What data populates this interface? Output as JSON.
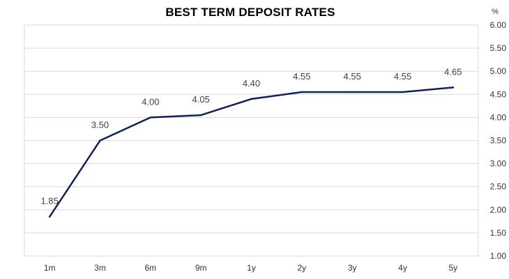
{
  "chart_data": {
    "type": "line",
    "title": "BEST TERM DEPOSIT RATES",
    "y_unit": "%",
    "categories": [
      "1m",
      "3m",
      "6m",
      "9m",
      "1y",
      "2y",
      "3y",
      "4y",
      "5y"
    ],
    "values": [
      1.85,
      3.5,
      4.0,
      4.05,
      4.4,
      4.55,
      4.55,
      4.55,
      4.65
    ],
    "data_labels": [
      "1.85",
      "3.50",
      "4.00",
      "4.05",
      "4.40",
      "4.55",
      "4.55",
      "4.55",
      "4.65"
    ],
    "ylim": [
      1.0,
      6.0
    ],
    "y_ticks": [
      "1.00",
      "1.50",
      "2.00",
      "2.50",
      "3.00",
      "3.50",
      "4.00",
      "4.50",
      "5.00",
      "5.50",
      "6.00"
    ],
    "y_axis_side": "right",
    "grid": "horizontal",
    "line_color": "#0d2259",
    "grid_color": "#d9d9d9"
  }
}
